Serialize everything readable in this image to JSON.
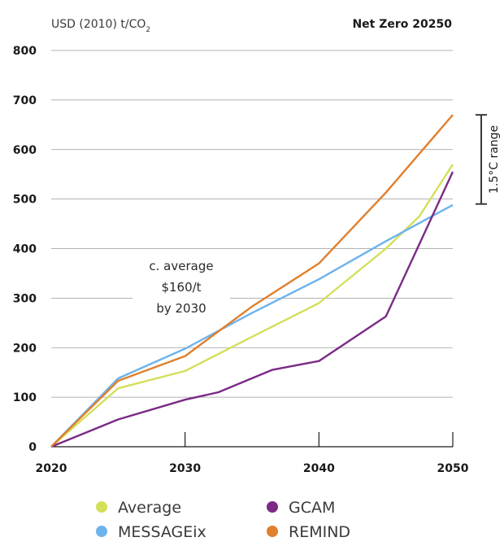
{
  "chart_data": {
    "type": "line",
    "title": "Net Zero 20250",
    "ylabel": "USD (2010) t/CO",
    "ylabel_sub": "2",
    "xlim": [
      2020,
      2050
    ],
    "ylim": [
      0,
      800
    ],
    "x_ticks": [
      2020,
      2030,
      2040,
      2050
    ],
    "x_tick_labels": [
      "2020",
      "2030",
      "2040",
      "2050"
    ],
    "y_ticks": [
      0,
      100,
      200,
      300,
      400,
      500,
      600,
      700,
      800
    ],
    "y_tick_labels": [
      "0",
      "100",
      "200",
      "300",
      "400",
      "500",
      "600",
      "700",
      "800"
    ],
    "grid": true,
    "series": [
      {
        "name": "Average",
        "color": "#d4df5a",
        "x": [
          2020,
          2025,
          2030,
          2035,
          2040,
          2045,
          2047.5,
          2049,
          2050
        ],
        "values": [
          0,
          118,
          153,
          222,
          290,
          400,
          465,
          528,
          570
        ]
      },
      {
        "name": "MESSAGEix",
        "color": "#6db3ec",
        "x": [
          2020,
          2025,
          2030,
          2035,
          2040,
          2045,
          2050
        ],
        "values": [
          0,
          138,
          198,
          270,
          338,
          415,
          488
        ]
      },
      {
        "name": "GCAM",
        "color": "#7b2a86",
        "x": [
          2020,
          2025,
          2030,
          2032.5,
          2036.5,
          2040,
          2045,
          2050
        ],
        "values": [
          0,
          55,
          95,
          110,
          155,
          173,
          263,
          555
        ]
      },
      {
        "name": "REMIND",
        "color": "#e07f2d",
        "x": [
          2020,
          2025,
          2030,
          2035,
          2040,
          2045,
          2050
        ],
        "values": [
          0,
          133,
          183,
          283,
          370,
          513,
          670
        ]
      }
    ],
    "annotations": [
      {
        "lines": [
          "c. average",
          "$160/t",
          "by 2030"
        ]
      }
    ],
    "range_marker": {
      "label": "1.5°C range",
      "from": 490,
      "to": 670
    },
    "legend": {
      "position": "bottom",
      "columns": 2,
      "order": [
        "Average",
        "GCAM",
        "MESSAGEix",
        "REMIND"
      ]
    }
  }
}
